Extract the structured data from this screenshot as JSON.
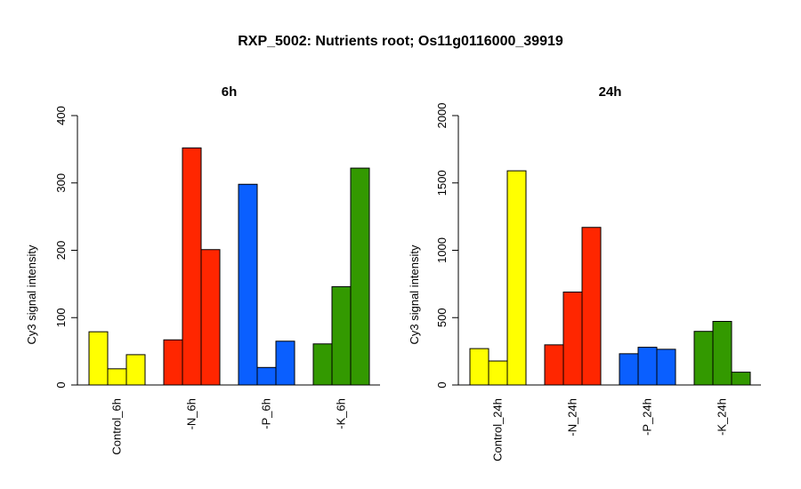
{
  "title": "RXP_5002: Nutrients root; Os11g0116000_39919",
  "colors": {
    "control": "#ffff00",
    "minus_n": "#ff2600",
    "minus_p": "#0a5fff",
    "minus_k": "#339900",
    "bar_stroke": "#000000"
  },
  "chart_data": [
    {
      "type": "bar",
      "title": "6h",
      "ylabel": "Cy3 signal intensity",
      "xlabel": "",
      "ylim": [
        0,
        400
      ],
      "yticks": [
        0,
        100,
        200,
        300,
        400
      ],
      "grid": false,
      "legend": "none",
      "groups": [
        {
          "label": "Control_6h",
          "color": "control",
          "values": [
            79,
            24,
            45
          ]
        },
        {
          "label": "-N_6h",
          "color": "minus_n",
          "values": [
            67,
            352,
            201
          ]
        },
        {
          "label": "-P_6h",
          "color": "minus_p",
          "values": [
            298,
            26,
            65
          ]
        },
        {
          "label": "-K_6h",
          "color": "minus_k",
          "values": [
            61,
            146,
            322
          ]
        }
      ]
    },
    {
      "type": "bar",
      "title": "24h",
      "ylabel": "Cy3 signal intensity",
      "xlabel": "",
      "ylim": [
        0,
        2000
      ],
      "yticks": [
        0,
        500,
        1000,
        1500,
        2000
      ],
      "grid": false,
      "legend": "none",
      "groups": [
        {
          "label": "Control_24h",
          "color": "control",
          "values": [
            270,
            178,
            1590
          ]
        },
        {
          "label": "-N_24h",
          "color": "minus_n",
          "values": [
            298,
            690,
            1170
          ]
        },
        {
          "label": "-P_24h",
          "color": "minus_p",
          "values": [
            232,
            280,
            265
          ]
        },
        {
          "label": "-K_24h",
          "color": "minus_k",
          "values": [
            398,
            472,
            95
          ]
        }
      ]
    }
  ]
}
